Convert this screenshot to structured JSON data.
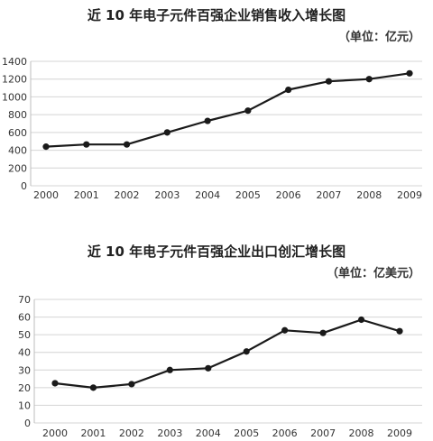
{
  "chart_data": [
    {
      "type": "line",
      "title": "近 10 年电子元件百强企业销售收入增长图",
      "unit": "（单位：亿元）",
      "xlabel": "",
      "ylabel": "",
      "categories": [
        "2000",
        "2001",
        "2002",
        "2003",
        "2004",
        "2005",
        "2006",
        "2007",
        "2008",
        "2009"
      ],
      "series": [
        {
          "values": [
            440,
            465,
            465,
            600,
            730,
            845,
            1080,
            1175,
            1200,
            1265
          ]
        }
      ],
      "ylim": [
        0,
        1400
      ],
      "yticks": [
        0,
        200,
        400,
        600,
        800,
        1000,
        1200,
        1400
      ],
      "grid": true,
      "color": "#1a1a1a"
    },
    {
      "type": "line",
      "title": "近 10 年电子元件百强企业出口创汇增长图",
      "unit": "（单位：亿美元）",
      "xlabel": "",
      "ylabel": "",
      "categories": [
        "2000",
        "2001",
        "2002",
        "2003",
        "2004",
        "2005",
        "2006",
        "2007",
        "2008",
        "2009"
      ],
      "series": [
        {
          "values": [
            22.5,
            20,
            22,
            30,
            31,
            40.5,
            52.5,
            51,
            58.5,
            52
          ]
        }
      ],
      "ylim": [
        0,
        70
      ],
      "yticks": [
        0,
        10,
        20,
        30,
        40,
        50,
        60,
        70
      ],
      "grid": true,
      "color": "#1a1a1a"
    }
  ]
}
